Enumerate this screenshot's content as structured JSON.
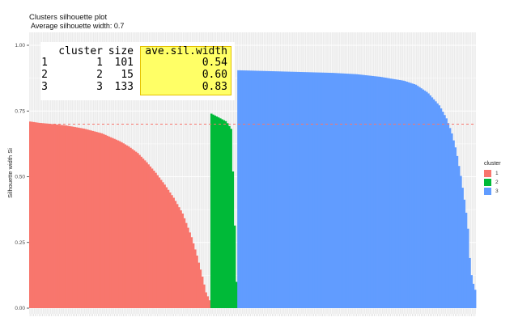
{
  "title": "Clusters silhouette plot",
  "subtitle": "Average silhouette width: 0.7",
  "table": {
    "headers": [
      "",
      "cluster",
      "size",
      "ave.sil.width"
    ],
    "rows": [
      [
        "1",
        "1",
        "101",
        "0.54"
      ],
      [
        "2",
        "2",
        "15",
        "0.60"
      ],
      [
        "3",
        "3",
        "133",
        "0.83"
      ]
    ]
  },
  "legend": {
    "title": "cluster",
    "items": [
      {
        "label": "1",
        "color": "#F8766D"
      },
      {
        "label": "2",
        "color": "#00BA38"
      },
      {
        "label": "3",
        "color": "#619CFF"
      }
    ]
  },
  "chart_data": {
    "type": "bar",
    "title": "Clusters silhouette plot",
    "subtitle": "Average silhouette width: 0.7",
    "xlabel": "",
    "ylabel": "Silhouette width Si",
    "ylim": [
      0,
      1
    ],
    "yticks": [
      "0.00",
      "0.25",
      "0.50",
      "0.75",
      "1.00"
    ],
    "average_line": 0.7,
    "average_line_color": "#F8766D",
    "grid": true,
    "legend_position": "right",
    "series": [
      {
        "name": "1",
        "color": "#F8766D",
        "count": 101,
        "profile": [
          [
            0,
            0.71
          ],
          [
            0.05,
            0.705
          ],
          [
            0.1,
            0.702
          ],
          [
            0.2,
            0.695
          ],
          [
            0.3,
            0.683
          ],
          [
            0.4,
            0.665
          ],
          [
            0.5,
            0.635
          ],
          [
            0.55,
            0.615
          ],
          [
            0.6,
            0.59
          ],
          [
            0.65,
            0.555
          ],
          [
            0.7,
            0.515
          ],
          [
            0.75,
            0.47
          ],
          [
            0.8,
            0.42
          ],
          [
            0.85,
            0.36
          ],
          [
            0.9,
            0.27
          ],
          [
            0.93,
            0.2
          ],
          [
            0.96,
            0.12
          ],
          [
            0.98,
            0.06
          ],
          [
            1,
            0.03
          ]
        ]
      },
      {
        "name": "2",
        "color": "#00BA38",
        "count": 15,
        "profile": [
          [
            0,
            0.74
          ],
          [
            0.2,
            0.73
          ],
          [
            0.4,
            0.72
          ],
          [
            0.6,
            0.71
          ],
          [
            0.8,
            0.68
          ],
          [
            0.9,
            0.4
          ],
          [
            1,
            0.1
          ]
        ]
      },
      {
        "name": "3",
        "color": "#619CFF",
        "count": 133,
        "profile": [
          [
            0,
            0.905
          ],
          [
            0.2,
            0.9
          ],
          [
            0.4,
            0.895
          ],
          [
            0.5,
            0.89
          ],
          [
            0.6,
            0.88
          ],
          [
            0.7,
            0.865
          ],
          [
            0.75,
            0.85
          ],
          [
            0.8,
            0.82
          ],
          [
            0.85,
            0.77
          ],
          [
            0.88,
            0.72
          ],
          [
            0.9,
            0.67
          ],
          [
            0.92,
            0.6
          ],
          [
            0.94,
            0.5
          ],
          [
            0.96,
            0.38
          ],
          [
            0.97,
            0.3
          ],
          [
            0.98,
            0.15
          ],
          [
            0.99,
            0.1
          ],
          [
            1,
            0.07
          ]
        ]
      }
    ]
  }
}
